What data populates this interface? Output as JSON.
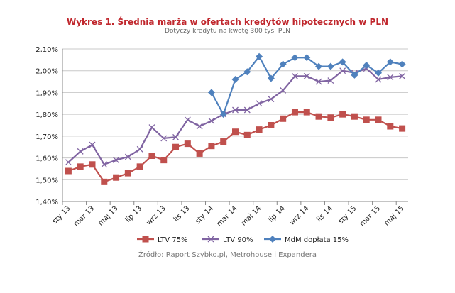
{
  "chart_data": {
    "type": "line",
    "title": "Wykres 1. Średnia marża w ofertach kredytów hipotecznych  w PLN",
    "subtitle": "Dotyczy kredytu na kwotę 300 tys. PLN",
    "source": "Źródło: Raport Szybko.pl, Metrohouse i Expandera",
    "x_tick_labels": [
      "sty 13",
      "mar 13",
      "maj 13",
      "lip 13",
      "wrz 13",
      "lis 13",
      "sty 14",
      "mar 14",
      "maj 14",
      "lip 14",
      "wrz 14",
      "lis 14",
      "sty 15",
      "mar 15",
      "maj 15"
    ],
    "y_tick_labels": [
      "1,40%",
      "1,50%",
      "1,60%",
      "1,70%",
      "1,80%",
      "1,90%",
      "2,00%",
      "2,10%"
    ],
    "ylim": [
      1.4,
      2.1
    ],
    "y_unit": "%",
    "grid": true,
    "legend_position": "bottom",
    "series": [
      {
        "name": "LTV 75%",
        "color": "#c0504d",
        "marker": "square",
        "values": [
          1.54,
          1.56,
          1.57,
          1.49,
          1.51,
          1.53,
          1.56,
          1.61,
          1.59,
          1.65,
          1.665,
          1.62,
          1.655,
          1.675,
          1.72,
          1.705,
          1.73,
          1.75,
          1.78,
          1.81,
          1.81,
          1.79,
          1.785,
          1.8,
          1.79,
          1.775,
          1.775,
          1.745,
          1.735
        ]
      },
      {
        "name": "LTV 90%",
        "color": "#8064a2",
        "marker": "x",
        "values": [
          1.58,
          1.63,
          1.66,
          1.57,
          1.59,
          1.605,
          1.64,
          1.74,
          1.69,
          1.695,
          1.775,
          1.745,
          1.77,
          1.8,
          1.82,
          1.82,
          1.85,
          1.87,
          1.91,
          1.975,
          1.975,
          1.95,
          1.955,
          2.0,
          1.99,
          2.01,
          1.96,
          1.97,
          1.975
        ]
      },
      {
        "name": "MdM dopłata 15%",
        "color": "#4f81bd",
        "marker": "diamond",
        "values": [
          null,
          null,
          null,
          null,
          null,
          null,
          null,
          null,
          null,
          null,
          null,
          null,
          1.9,
          1.8,
          1.96,
          1.995,
          2.065,
          1.965,
          2.03,
          2.06,
          2.06,
          2.02,
          2.02,
          2.04,
          1.98,
          2.025,
          1.99,
          2.04,
          2.03
        ]
      }
    ]
  }
}
